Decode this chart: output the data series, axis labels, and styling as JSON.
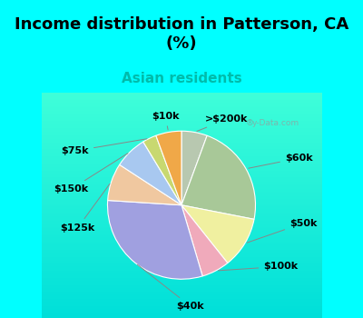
{
  "title": "Income distribution in Patterson, CA\n(%)",
  "subtitle": "Asian residents",
  "title_fontsize": 13,
  "subtitle_fontsize": 11,
  "subtitle_color": "#00BBAA",
  "background_color": "#00FFFF",
  "chart_bg_start": "#D0EED8",
  "chart_bg_end": "#E8F8F0",
  "labels": [
    ">$200k",
    "$60k",
    "$50k",
    "$100k",
    "$40k",
    "$125k",
    "$150k",
    "$75k",
    "$10k"
  ],
  "sizes": [
    5.5,
    22.0,
    11.0,
    6.0,
    30.0,
    8.0,
    7.0,
    3.0,
    5.5
  ],
  "colors": [
    "#B8C8B0",
    "#A8C898",
    "#F0F0A0",
    "#F0AABB",
    "#A0A0E0",
    "#F0C8A0",
    "#A8C8F0",
    "#C8D870",
    "#F0A848"
  ],
  "label_fontsize": 8,
  "watermark": "y-Data.com",
  "figsize": [
    4.0,
    3.5
  ],
  "dpi": 100
}
